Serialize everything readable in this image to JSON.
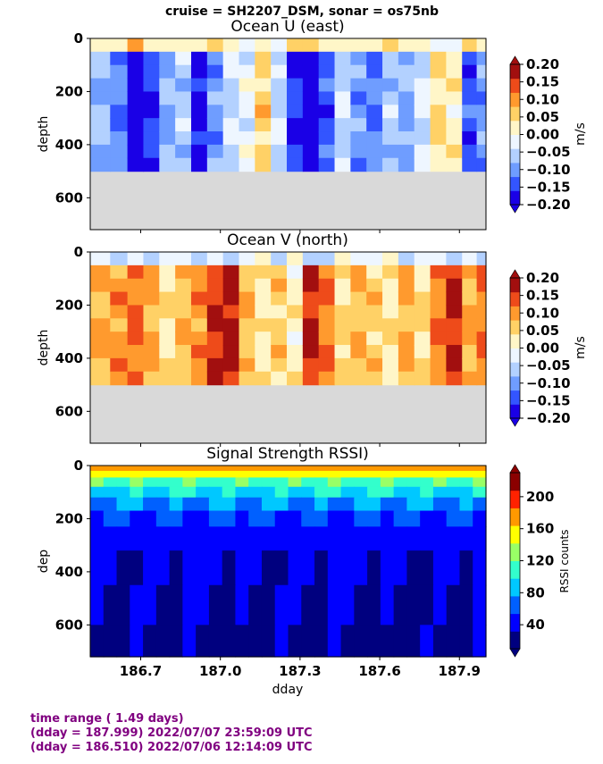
{
  "figure": {
    "suptitle": "cruise = SH2207_DSM,  sonar = os75nb"
  },
  "chart_data": [
    {
      "type": "heatmap",
      "title": "Ocean U (east)",
      "ylabel": "depth",
      "xlim": [
        186.51,
        188.0
      ],
      "ylim": [
        720,
        0
      ],
      "yticks": [
        "0",
        "200",
        "400",
        "600"
      ],
      "colorbar": {
        "label": "m/s",
        "range": [
          -0.2,
          0.2
        ],
        "ticks": [
          "0.20",
          "0.15",
          "0.10",
          "0.05",
          "0.00",
          "−0.05",
          "−0.10",
          "−0.15",
          "−0.20"
        ],
        "colors": [
          "#1a00e6",
          "#3355ff",
          "#6f9dff",
          "#b3d1ff",
          "#eef6ff",
          "#fff6c8",
          "#ffd166",
          "#ff9a2e",
          "#ee4b1a",
          "#a20f0f"
        ]
      },
      "bottom_depth": 500,
      "profile": [
        {
          "x": 186.55,
          "v": -0.08
        },
        {
          "x": 186.62,
          "v": -0.12
        },
        {
          "x": 186.68,
          "v": -0.2
        },
        {
          "x": 186.74,
          "v": -0.15
        },
        {
          "x": 186.8,
          "v": -0.09
        },
        {
          "x": 186.86,
          "v": -0.06
        },
        {
          "x": 186.92,
          "v": -0.18
        },
        {
          "x": 186.98,
          "v": -0.1
        },
        {
          "x": 187.04,
          "v": -0.05
        },
        {
          "x": 187.1,
          "v": -0.02
        },
        {
          "x": 187.16,
          "v": 0.06
        },
        {
          "x": 187.22,
          "v": -0.05
        },
        {
          "x": 187.28,
          "v": -0.16
        },
        {
          "x": 187.34,
          "v": -0.2
        },
        {
          "x": 187.4,
          "v": -0.14
        },
        {
          "x": 187.46,
          "v": -0.04
        },
        {
          "x": 187.52,
          "v": -0.1
        },
        {
          "x": 187.58,
          "v": -0.12
        },
        {
          "x": 187.64,
          "v": -0.06
        },
        {
          "x": 187.7,
          "v": -0.09
        },
        {
          "x": 187.76,
          "v": -0.03
        },
        {
          "x": 187.82,
          "v": 0.05
        },
        {
          "x": 187.88,
          "v": 0.02
        },
        {
          "x": 187.94,
          "v": -0.14
        },
        {
          "x": 187.99,
          "v": -0.1
        }
      ]
    },
    {
      "type": "heatmap",
      "title": "Ocean V (north)",
      "ylabel": "depth",
      "xlim": [
        186.51,
        188.0
      ],
      "ylim": [
        720,
        0
      ],
      "yticks": [
        "0",
        "200",
        "400",
        "600"
      ],
      "colorbar": {
        "label": "m/s",
        "range": [
          -0.2,
          0.2
        ],
        "ticks": [
          "0.20",
          "0.15",
          "0.10",
          "0.05",
          "0.00",
          "−0.05",
          "−0.10",
          "−0.15",
          "−0.20"
        ],
        "colors": [
          "#1a00e6",
          "#3355ff",
          "#6f9dff",
          "#b3d1ff",
          "#eef6ff",
          "#fff6c8",
          "#ffd166",
          "#ff9a2e",
          "#ee4b1a",
          "#a20f0f"
        ]
      },
      "bottom_depth": 500,
      "profile": [
        {
          "x": 186.55,
          "v": 0.08
        },
        {
          "x": 186.62,
          "v": 0.1
        },
        {
          "x": 186.68,
          "v": 0.12
        },
        {
          "x": 186.74,
          "v": 0.09
        },
        {
          "x": 186.8,
          "v": 0.04
        },
        {
          "x": 186.86,
          "v": 0.07
        },
        {
          "x": 186.92,
          "v": 0.1
        },
        {
          "x": 186.98,
          "v": 0.16
        },
        {
          "x": 187.04,
          "v": 0.18
        },
        {
          "x": 187.1,
          "v": 0.07
        },
        {
          "x": 187.16,
          "v": 0.03
        },
        {
          "x": 187.22,
          "v": 0.06
        },
        {
          "x": 187.28,
          "v": 0.02
        },
        {
          "x": 187.34,
          "v": 0.17
        },
        {
          "x": 187.4,
          "v": 0.12
        },
        {
          "x": 187.46,
          "v": 0.05
        },
        {
          "x": 187.52,
          "v": 0.08
        },
        {
          "x": 187.58,
          "v": 0.06
        },
        {
          "x": 187.64,
          "v": 0.03
        },
        {
          "x": 187.7,
          "v": 0.09
        },
        {
          "x": 187.76,
          "v": 0.05
        },
        {
          "x": 187.82,
          "v": 0.11
        },
        {
          "x": 187.88,
          "v": 0.16
        },
        {
          "x": 187.94,
          "v": 0.09
        },
        {
          "x": 187.99,
          "v": 0.12
        }
      ]
    },
    {
      "type": "heatmap",
      "title": "Signal Strength RSSI)",
      "ylabel": "dep",
      "xlabel": "dday",
      "xlim": [
        186.51,
        188.0
      ],
      "ylim": [
        720,
        0
      ],
      "xticks": [
        186.7,
        187.0,
        187.3,
        187.6,
        187.9
      ],
      "xtick_labels": [
        "186.7",
        "187.0",
        "187.3",
        "187.6",
        "187.9"
      ],
      "yticks": [
        "0",
        "200",
        "400",
        "600"
      ],
      "colorbar": {
        "label": "RSSI counts",
        "range": [
          10,
          230
        ],
        "ticks": [
          "200",
          "160",
          "120",
          "80",
          "40"
        ],
        "colors": [
          "#00007f",
          "#0000ff",
          "#0060ff",
          "#00c8ff",
          "#33ffcc",
          "#99ff66",
          "#ffff00",
          "#ff9900",
          "#ff2200",
          "#8b0000"
        ]
      },
      "depth_levels": [
        {
          "depth": 20,
          "value": 175
        },
        {
          "depth": 45,
          "value": 150
        },
        {
          "depth": 80,
          "value": 115
        },
        {
          "depth": 120,
          "value": 95
        },
        {
          "depth": 170,
          "value": 75
        },
        {
          "depth": 230,
          "value": 55
        },
        {
          "depth": 320,
          "value": 45
        },
        {
          "depth": 450,
          "value": 35
        },
        {
          "depth": 600,
          "value": 30
        },
        {
          "depth": 720,
          "value": 25
        }
      ]
    }
  ],
  "footer": {
    "line1": "time range ( 1.49 days)",
    "line2": "(dday = 187.999) 2022/07/07 23:59:09 UTC",
    "line3": "(dday = 186.510) 2022/07/06 12:14:09 UTC"
  }
}
